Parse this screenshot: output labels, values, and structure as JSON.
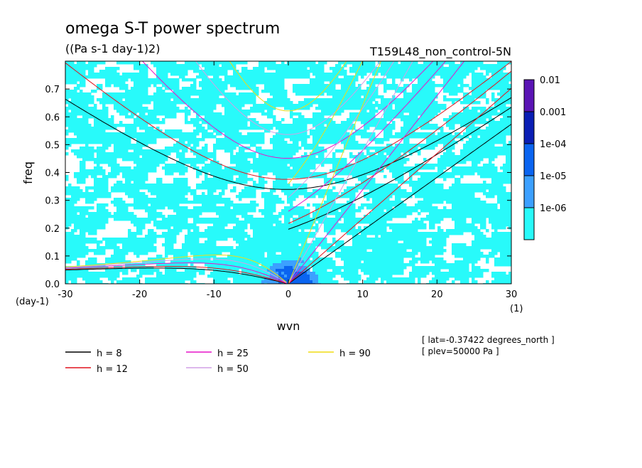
{
  "chart_data": {
    "type": "heatmap",
    "title": "omega S-T power spectrum",
    "units": "((Pa s-1 day-1)2)",
    "dataset": "T159L48_non_control-5N",
    "xlabel": "wvn",
    "ylabel": "freq",
    "x_unit": "(1)",
    "y_unit": "(day-1)",
    "xlim": [
      -30,
      30
    ],
    "ylim": [
      0,
      0.8
    ],
    "x_ticks": [
      "-30",
      "-20",
      "-10",
      "0",
      "10",
      "20",
      "30"
    ],
    "x_tick_values": [
      -30,
      -20,
      -10,
      0,
      10,
      20,
      30
    ],
    "y_ticks": [
      "0.0",
      "0.1",
      "0.2",
      "0.3",
      "0.4",
      "0.5",
      "0.6",
      "0.7"
    ],
    "y_tick_values": [
      0,
      0.1,
      0.2,
      0.3,
      0.4,
      0.5,
      0.6,
      0.7
    ],
    "colorbar": {
      "labels": [
        "0.01",
        "0.001",
        "1e-04",
        "1e-05",
        "1e-06"
      ],
      "colors": [
        "#5a14b4",
        "#0a1eb4",
        "#0a64f0",
        "#3ca0ff",
        "#28fafa"
      ]
    },
    "dispersion_curves": [
      {
        "label": "h =  8",
        "h": 8,
        "color": "#000000"
      },
      {
        "label": "h = 12",
        "h": 12,
        "color": "#e0141e"
      },
      {
        "label": "h = 25",
        "h": 25,
        "color": "#e614c8"
      },
      {
        "label": "h = 50",
        "h": 50,
        "color": "#d2a0e6"
      },
      {
        "label": "h = 90",
        "h": 90,
        "color": "#f0dc14"
      }
    ],
    "annotations": [
      "[ lat=-0.37422 degrees_north ]",
      "[ plev=50000 Pa ]"
    ]
  }
}
